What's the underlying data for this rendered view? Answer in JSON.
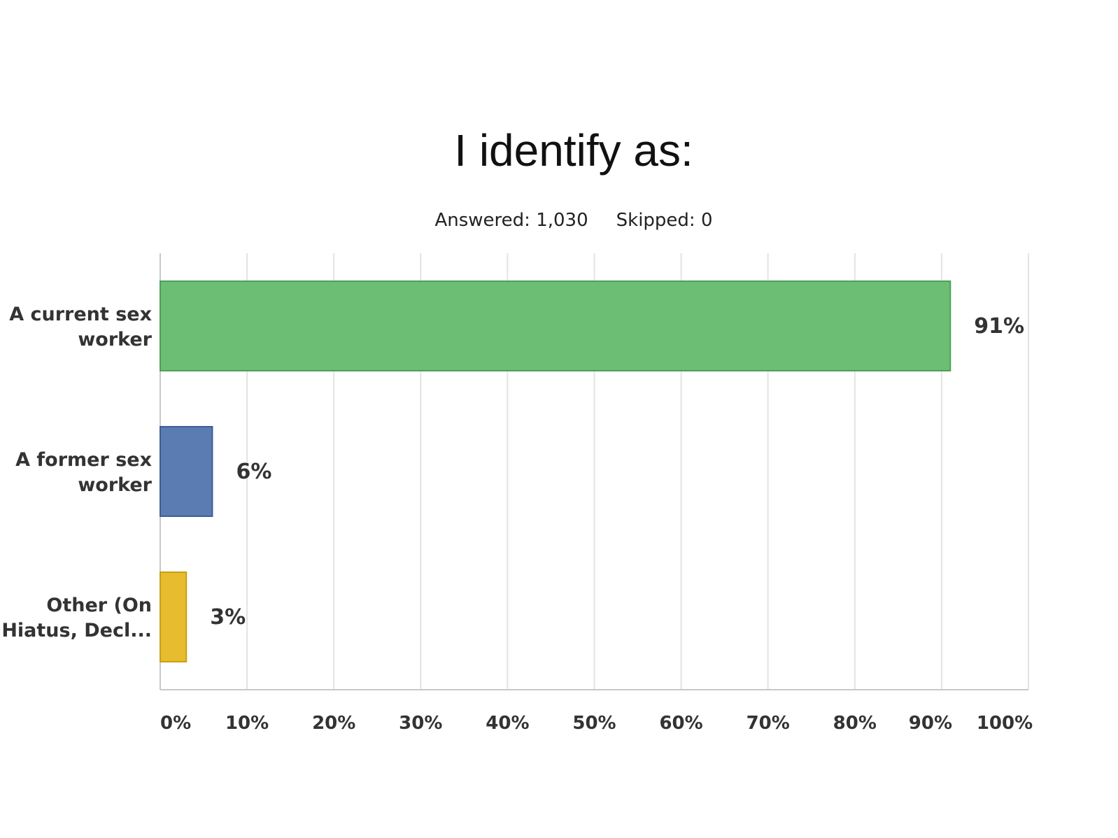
{
  "chart_data": {
    "type": "bar",
    "orientation": "horizontal",
    "title": "I identify as:",
    "subtitle": {
      "answered": "Answered: 1,030",
      "skipped": "Skipped: 0"
    },
    "categories": [
      [
        "A current sex",
        "worker"
      ],
      [
        "A former sex",
        "worker"
      ],
      [
        "Other (On",
        "Hiatus, Decl..."
      ]
    ],
    "values": [
      91,
      6,
      3
    ],
    "value_labels": [
      "91%",
      "6%",
      "3%"
    ],
    "colors": [
      "#6bbe74",
      "#5b7bb3",
      "#e7bd2f"
    ],
    "xlim": [
      0,
      100
    ],
    "xticks": [
      0,
      10,
      20,
      30,
      40,
      50,
      60,
      70,
      80,
      90,
      100
    ],
    "xtick_labels": [
      "0%",
      "10%",
      "20%",
      "30%",
      "40%",
      "50%",
      "60%",
      "70%",
      "80%",
      "90%",
      "100%"
    ],
    "grid": true
  }
}
